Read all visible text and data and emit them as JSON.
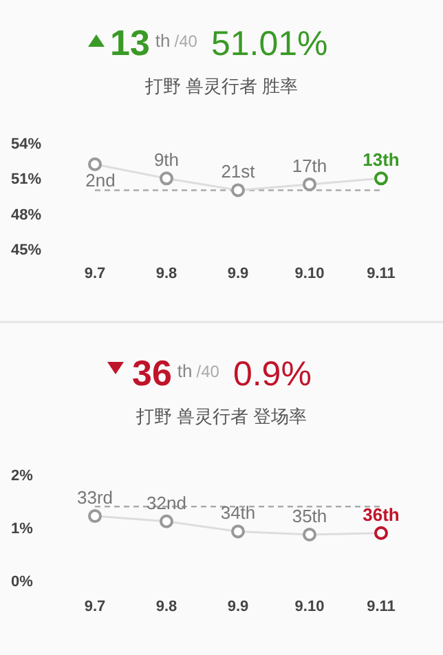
{
  "chart_data": [
    {
      "type": "line",
      "title": "打野 兽灵行者 胜率",
      "annotations": [
        "13",
        "th",
        "/40",
        "51.01%",
        {
          "text": "2nd",
          "x": "9.7",
          "y": 52.2
        },
        {
          "text": "9th",
          "x": "9.8",
          "y": 51.0
        },
        {
          "text": "21st",
          "x": "9.9",
          "y": 50.0
        },
        {
          "text": "17th",
          "x": "9.10",
          "y": 50.5
        },
        {
          "text": "13th",
          "x": "9.11",
          "y": 51.0
        }
      ],
      "categories": [
        "9.7",
        "9.8",
        "9.9",
        "9.10",
        "9.11"
      ],
      "series": [
        {
          "color": "#dddddd",
          "colors": [
            "#999999",
            "#999999",
            "#999999",
            "#999999",
            "#3a9a26"
          ],
          "values": [
            52.2,
            51.0,
            50.0,
            50.5,
            51.0
          ]
        }
      ],
      "ylim": [
        45,
        54
      ],
      "yticks": [
        {
          "value": 45,
          "label": "45%"
        },
        {
          "value": 48,
          "label": "48%"
        },
        {
          "value": 51,
          "label": "51%"
        },
        {
          "value": 54,
          "label": "54%"
        }
      ],
      "ref_lines": [
        {
          "axis": "y",
          "value": 50,
          "color": "#aaaaaa",
          "line_style": "dashed"
        }
      ],
      "marker": "circle"
    },
    {
      "type": "line",
      "title": "打野 兽灵行者 登场率",
      "annotations": [
        "36",
        "th",
        "/40",
        "0.9%",
        {
          "text": "33rd",
          "x": "9.7",
          "y": 1.22
        },
        {
          "text": "32nd",
          "x": "9.8",
          "y": 1.12
        },
        {
          "text": "34th",
          "x": "9.9",
          "y": 0.93
        },
        {
          "text": "35th",
          "x": "9.10",
          "y": 0.87
        },
        {
          "text": "36th",
          "x": "9.11",
          "y": 0.9
        }
      ],
      "categories": [
        "9.7",
        "9.8",
        "9.9",
        "9.10",
        "9.11"
      ],
      "series": [
        {
          "color": "#dddddd",
          "colors": [
            "#999999",
            "#999999",
            "#999999",
            "#999999",
            "#c0142a"
          ],
          "values": [
            1.22,
            1.12,
            0.93,
            0.87,
            0.9
          ]
        }
      ],
      "ylim": [
        0,
        2
      ],
      "yticks": [
        {
          "value": 0,
          "label": "0%"
        },
        {
          "value": 1,
          "label": "1%"
        },
        {
          "value": 2,
          "label": "2%"
        }
      ],
      "ref_lines": [
        {
          "axis": "y",
          "value": 1.4,
          "color": "#aaaaaa",
          "line_style": "dashed"
        }
      ],
      "marker": "circle"
    }
  ]
}
